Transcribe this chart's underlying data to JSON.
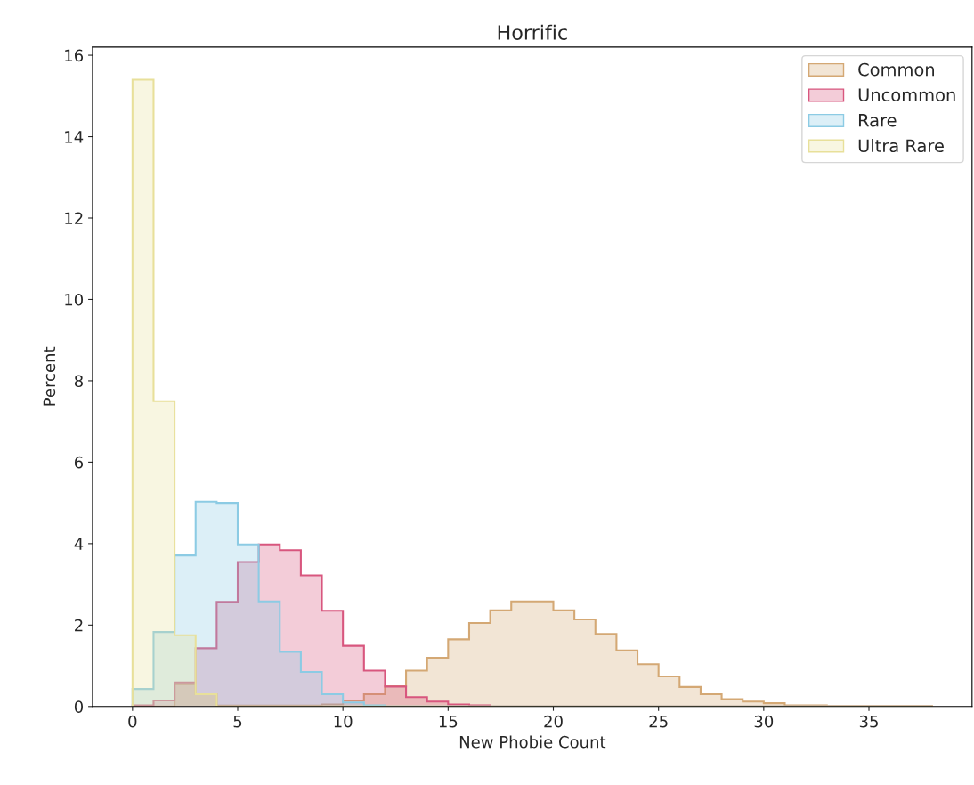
{
  "chart_data": {
    "type": "histogram",
    "title": "Horrific",
    "xlabel": "New Phobie Count",
    "ylabel": "Percent",
    "bins": [
      0,
      1,
      2,
      3,
      4,
      5,
      6,
      7,
      8,
      9,
      10,
      11,
      12,
      13,
      14,
      15,
      16,
      17,
      18,
      19,
      20,
      21,
      22,
      23,
      24,
      25,
      26,
      27,
      28,
      29,
      30,
      31,
      32,
      33,
      34,
      35,
      36,
      37,
      38
    ],
    "series": [
      {
        "name": "Common",
        "color": "#d4a874",
        "values": [
          0,
          0,
          0.55,
          0.3,
          0.02,
          0.02,
          0.02,
          0.02,
          0.02,
          0.05,
          0.15,
          0.3,
          0.5,
          0.88,
          1.2,
          1.65,
          2.05,
          2.36,
          2.58,
          2.58,
          2.36,
          2.14,
          1.78,
          1.38,
          1.04,
          0.74,
          0.48,
          0.3,
          0.18,
          0.12,
          0.08,
          0.03,
          0.03,
          0.01,
          0.01,
          0.01,
          0.01,
          0.01
        ]
      },
      {
        "name": "Uncommon",
        "color": "#d8567e",
        "values": [
          0.03,
          0.15,
          0.59,
          1.43,
          2.57,
          3.55,
          3.98,
          3.84,
          3.22,
          2.35,
          1.49,
          0.88,
          0.49,
          0.23,
          0.12,
          0.05,
          0.03,
          0,
          0,
          0,
          0,
          0,
          0,
          0,
          0,
          0,
          0,
          0,
          0,
          0,
          0,
          0,
          0,
          0,
          0,
          0,
          0,
          0
        ]
      },
      {
        "name": "Rare",
        "color": "#8ccbe4",
        "values": [
          0.43,
          1.83,
          3.71,
          5.03,
          5.0,
          3.98,
          2.58,
          1.34,
          0.85,
          0.3,
          0.1,
          0.03,
          0,
          0,
          0,
          0,
          0,
          0,
          0,
          0,
          0,
          0,
          0,
          0,
          0,
          0,
          0,
          0,
          0,
          0,
          0,
          0,
          0,
          0,
          0,
          0,
          0,
          0
        ]
      },
      {
        "name": "Ultra Rare",
        "color": "#e8e09a",
        "values": [
          15.4,
          7.5,
          1.75,
          0.3,
          0,
          0,
          0,
          0,
          0,
          0,
          0,
          0,
          0,
          0,
          0,
          0,
          0,
          0,
          0,
          0,
          0,
          0,
          0,
          0,
          0,
          0,
          0,
          0,
          0,
          0,
          0,
          0,
          0,
          0,
          0,
          0,
          0,
          0
        ]
      }
    ],
    "xlim": [
      -1.9,
      39.9
    ],
    "xticks": [
      0,
      5,
      10,
      15,
      20,
      25,
      30,
      35
    ],
    "ylim": [
      0,
      16.2
    ],
    "yticks": [
      0,
      2,
      4,
      6,
      8,
      10,
      12,
      14,
      16
    ],
    "grid": false,
    "legend": "top right"
  }
}
